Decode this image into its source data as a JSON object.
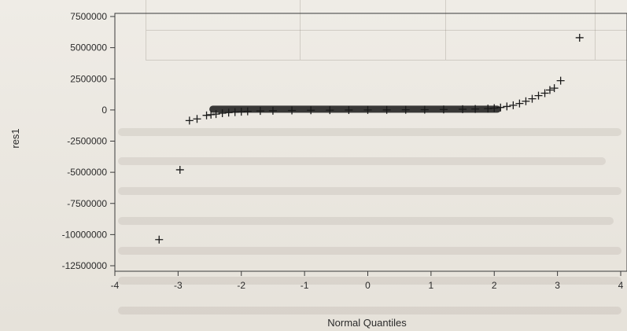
{
  "chart_data": {
    "type": "scatter",
    "title": "",
    "xlabel": "Normal Quantiles",
    "ylabel": "res1",
    "xlim": [
      -4,
      4
    ],
    "ylim": [
      -12500000,
      7500000
    ],
    "x_ticks": [
      -4,
      -3,
      -2,
      -1,
      0,
      1,
      2,
      3,
      4
    ],
    "x_tick_labels": [
      "-4",
      "-3",
      "-2",
      "-1",
      "0",
      "1",
      "2",
      "3",
      "4"
    ],
    "y_ticks": [
      7500000,
      5000000,
      2500000,
      0,
      -2500000,
      -5000000,
      -7500000,
      -10000000,
      -12500000
    ],
    "y_tick_labels": [
      "7500000",
      "5000000",
      "2500000",
      "0",
      "-2500000",
      "-5000000",
      "-7500000",
      "-10000000",
      "-12500000"
    ],
    "marker": "+",
    "marker_color": "#1a1a1a",
    "grid": false,
    "series": [
      {
        "points": [
          [
            -3.3,
            -10400000
          ],
          [
            -2.97,
            -4800000
          ],
          [
            -2.82,
            -850000
          ],
          [
            -2.7,
            -720000
          ],
          [
            -2.55,
            -430000
          ],
          [
            -2.48,
            -380000
          ],
          [
            -2.4,
            -330000
          ],
          [
            -2.3,
            -260000
          ],
          [
            -2.2,
            -210000
          ],
          [
            -2.1,
            -170000
          ],
          [
            -2.0,
            -140000
          ],
          [
            -1.9,
            -110000
          ],
          [
            -1.7,
            -80000
          ],
          [
            -1.5,
            -60000
          ],
          [
            -1.2,
            -40000
          ],
          [
            -0.9,
            -25000
          ],
          [
            -0.6,
            -15000
          ],
          [
            -0.3,
            -5000
          ],
          [
            0.0,
            0
          ],
          [
            0.3,
            5000
          ],
          [
            0.6,
            15000
          ],
          [
            0.9,
            25000
          ],
          [
            1.2,
            40000
          ],
          [
            1.5,
            60000
          ],
          [
            1.7,
            80000
          ],
          [
            1.9,
            110000
          ],
          [
            2.0,
            150000
          ],
          [
            2.1,
            200000
          ],
          [
            2.2,
            280000
          ],
          [
            2.3,
            380000
          ],
          [
            2.4,
            520000
          ],
          [
            2.5,
            700000
          ],
          [
            2.6,
            900000
          ],
          [
            2.7,
            1150000
          ],
          [
            2.8,
            1350000
          ],
          [
            2.88,
            1600000
          ],
          [
            2.95,
            1750000
          ],
          [
            3.05,
            2350000
          ],
          [
            3.35,
            5800000
          ]
        ]
      }
    ]
  }
}
